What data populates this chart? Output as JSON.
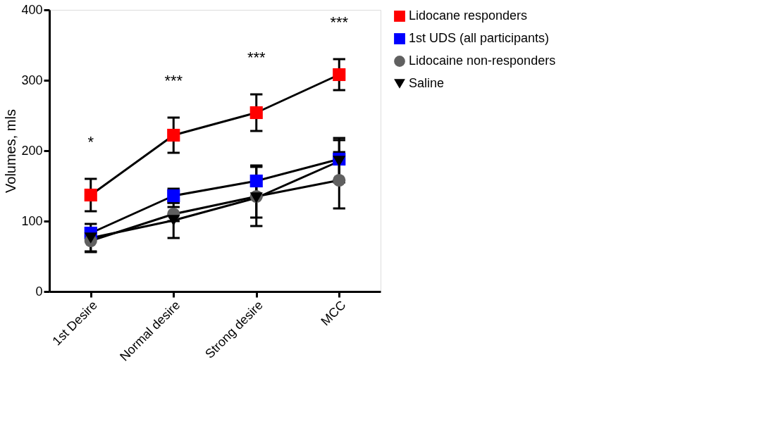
{
  "chart_data": {
    "type": "line",
    "ylabel": "Volumes, mls",
    "categories": [
      "1st Desire",
      "Normal desire",
      "Strong desire",
      "MCC"
    ],
    "ylim": [
      0,
      400
    ],
    "yticks": [
      0,
      100,
      200,
      300,
      400
    ],
    "grid": false,
    "legend": "top right",
    "series": [
      {
        "name": "Lidocane responders",
        "color": "#ff0000",
        "marker": "square",
        "values": [
          137,
          222,
          254,
          308
        ],
        "errors": [
          23,
          25,
          26,
          22
        ]
      },
      {
        "name": "1st UDS (all participants)",
        "color": "#0000ff",
        "marker": "square",
        "values": [
          83,
          136,
          157,
          188
        ],
        "errors": [
          6,
          10,
          22,
          30
        ]
      },
      {
        "name": "Lidocaine non-responders",
        "color": "#606060",
        "marker": "circle",
        "values": [
          72,
          110,
          135,
          158
        ],
        "errors": [
          15,
          10,
          42,
          40
        ]
      },
      {
        "name": "Saline",
        "color": "#000000",
        "marker": "triangle-down",
        "values": [
          76,
          101,
          133,
          185
        ],
        "errors": [
          20,
          25,
          28,
          30
        ]
      }
    ],
    "annotations": [
      "*",
      "***",
      "***",
      "***"
    ]
  }
}
